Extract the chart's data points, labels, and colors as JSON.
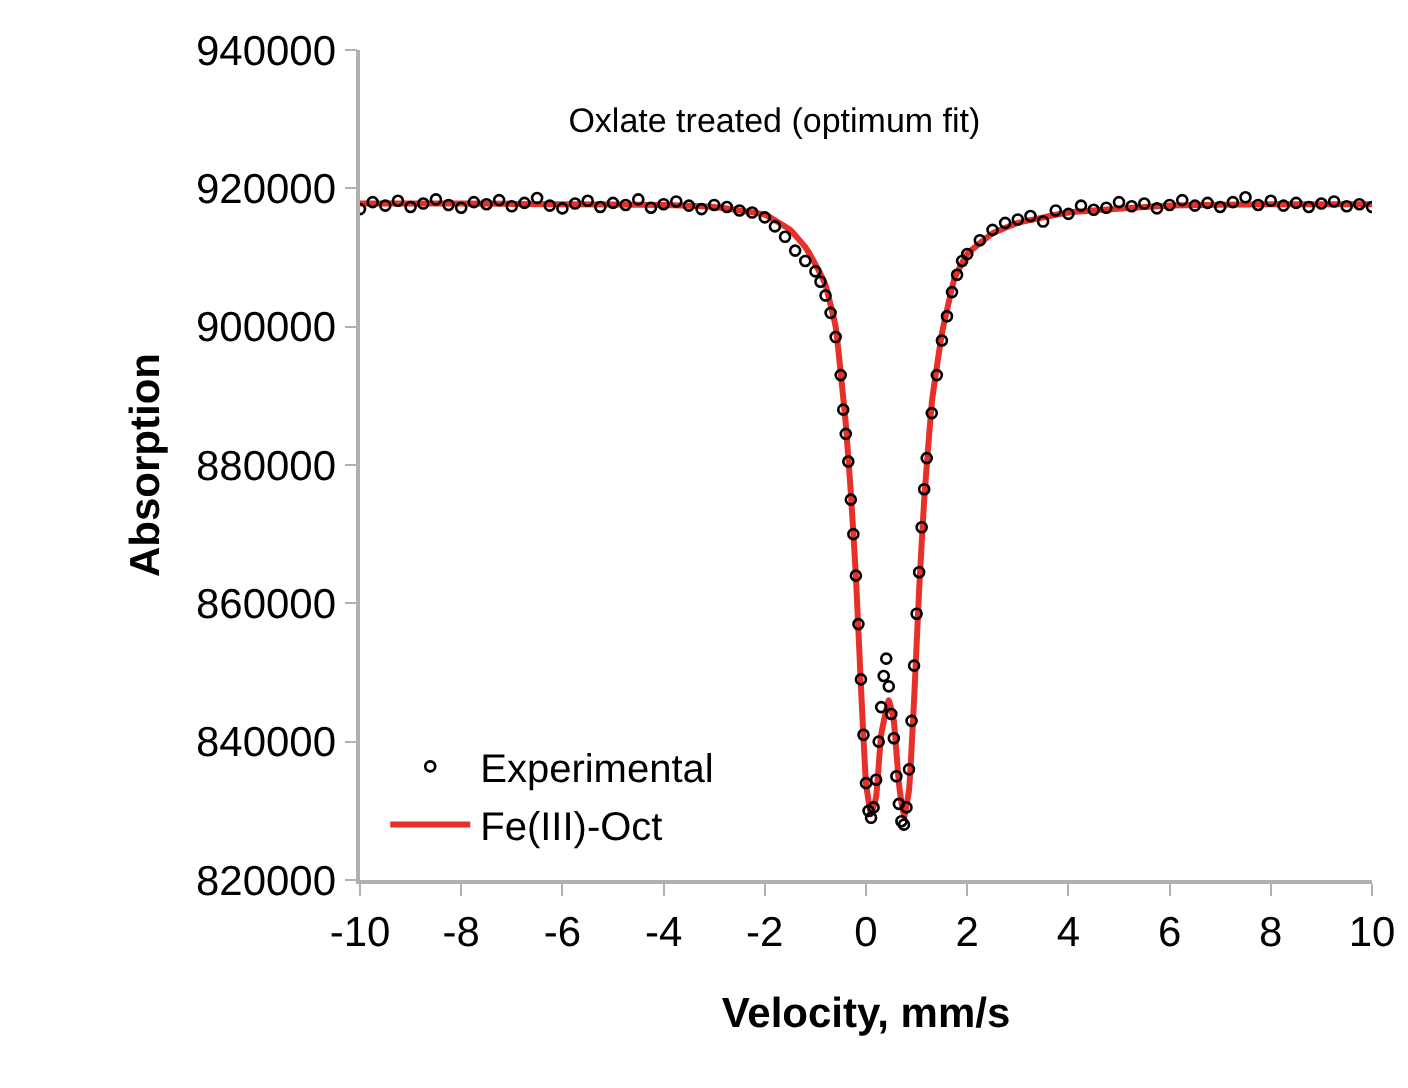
{
  "chart_data": {
    "type": "scatter",
    "title": "Oxlate treated (optimum fit)",
    "xlabel": "Velocity, mm/s",
    "ylabel": "Absorption",
    "xlim": [
      -10,
      10
    ],
    "xticks": [
      -10,
      -8,
      -6,
      -4,
      -2,
      0,
      2,
      4,
      6,
      8,
      10
    ],
    "ylim": [
      820000,
      940000
    ],
    "yticks": [
      820000,
      840000,
      860000,
      880000,
      900000,
      920000,
      940000
    ],
    "grid": false,
    "legend": "bottom left",
    "series": [
      {
        "name": "Experimental",
        "marker": "circle",
        "color": "#000000",
        "x": [
          -10,
          -9.75,
          -9.5,
          -9.25,
          -9,
          -8.75,
          -8.5,
          -8.25,
          -8,
          -7.75,
          -7.5,
          -7.25,
          -7,
          -6.75,
          -6.5,
          -6.25,
          -6,
          -5.75,
          -5.5,
          -5.25,
          -5,
          -4.75,
          -4.5,
          -4.25,
          -4,
          -3.75,
          -3.5,
          -3.25,
          -3,
          -2.75,
          -2.5,
          -2.25,
          -2,
          -1.8,
          -1.6,
          -1.4,
          -1.2,
          -1,
          -0.9,
          -0.8,
          -0.7,
          -0.6,
          -0.5,
          -0.45,
          -0.4,
          -0.35,
          -0.3,
          -0.25,
          -0.2,
          -0.15,
          -0.1,
          -0.05,
          0,
          0.05,
          0.1,
          0.15,
          0.2,
          0.25,
          0.3,
          0.35,
          0.4,
          0.45,
          0.5,
          0.55,
          0.6,
          0.65,
          0.7,
          0.75,
          0.8,
          0.85,
          0.9,
          0.95,
          1,
          1.05,
          1.1,
          1.15,
          1.2,
          1.3,
          1.4,
          1.5,
          1.6,
          1.7,
          1.8,
          1.9,
          2,
          2.25,
          2.5,
          2.75,
          3,
          3.25,
          3.5,
          3.75,
          4,
          4.25,
          4.5,
          4.75,
          5,
          5.25,
          5.5,
          5.75,
          6,
          6.25,
          6.5,
          6.75,
          7,
          7.25,
          7.5,
          7.75,
          8,
          8.25,
          8.5,
          8.75,
          9,
          9.25,
          9.5,
          9.75,
          10
        ],
        "values": [
          917000,
          918000,
          917500,
          918200,
          917300,
          917800,
          918400,
          917600,
          917200,
          918000,
          917700,
          918300,
          917400,
          917900,
          918600,
          917500,
          917100,
          917800,
          918200,
          917300,
          917900,
          917600,
          918400,
          917200,
          917700,
          918100,
          917500,
          917000,
          917600,
          917300,
          916800,
          916500,
          915800,
          914500,
          913000,
          911000,
          909500,
          908000,
          906500,
          904500,
          902000,
          898500,
          893000,
          888000,
          884500,
          880500,
          875000,
          870000,
          864000,
          857000,
          849000,
          841000,
          834000,
          830000,
          829000,
          830500,
          834500,
          840000,
          845000,
          849500,
          852000,
          848000,
          844000,
          840500,
          835000,
          831000,
          828500,
          828000,
          830500,
          836000,
          843000,
          851000,
          858500,
          864500,
          871000,
          876500,
          881000,
          887500,
          893000,
          898000,
          901500,
          905000,
          907500,
          909500,
          910500,
          912500,
          914000,
          915000,
          915500,
          916000,
          915200,
          916800,
          916300,
          917500,
          916900,
          917200,
          918000,
          917400,
          917800,
          917100,
          917600,
          918300,
          917500,
          917900,
          917300,
          918000,
          918700,
          917600,
          918200,
          917500,
          917900,
          917300,
          917800,
          918100,
          917400,
          917700,
          917300
        ]
      },
      {
        "name": "Fe(III)-Oct",
        "type": "line",
        "marker": "none",
        "line_style": "solid",
        "color": "#e8302a",
        "x": [
          -10,
          -8,
          -6,
          -4,
          -3,
          -2,
          -1.5,
          -1.2,
          -1,
          -0.8,
          -0.6,
          -0.4,
          -0.3,
          -0.2,
          -0.1,
          0,
          0.1,
          0.2,
          0.3,
          0.45,
          0.55,
          0.65,
          0.75,
          0.85,
          0.95,
          1.05,
          1.15,
          1.3,
          1.5,
          1.75,
          2,
          2.5,
          3,
          4,
          6,
          8,
          10
        ],
        "values": [
          917800,
          917800,
          917700,
          917600,
          917300,
          916200,
          914000,
          911500,
          909000,
          906000,
          900000,
          886000,
          876000,
          864000,
          848000,
          834000,
          829500,
          832000,
          841000,
          846000,
          843000,
          834000,
          829000,
          833000,
          846000,
          862000,
          875000,
          889000,
          899000,
          907000,
          910500,
          913500,
          915000,
          916500,
          917500,
          917700,
          917700
        ]
      }
    ]
  }
}
